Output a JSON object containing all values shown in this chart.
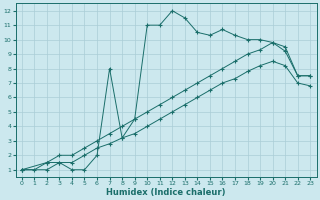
{
  "xlabel": "Humidex (Indice chaleur)",
  "bg_color": "#cce8ee",
  "grid_color": "#aacdd6",
  "line_color": "#1a6e6a",
  "xlim": [
    -0.5,
    23.5
  ],
  "ylim": [
    0.5,
    12.5
  ],
  "xticks": [
    0,
    1,
    2,
    3,
    4,
    5,
    6,
    7,
    8,
    9,
    10,
    11,
    12,
    13,
    14,
    15,
    16,
    17,
    18,
    19,
    20,
    21,
    22,
    23
  ],
  "yticks": [
    1,
    2,
    3,
    4,
    5,
    6,
    7,
    8,
    9,
    10,
    11,
    12
  ],
  "line1_x": [
    0,
    1,
    2,
    3,
    4,
    5,
    6,
    7,
    8,
    9,
    10,
    11,
    12,
    13,
    14,
    15,
    16,
    17,
    18,
    19,
    20,
    21,
    22,
    23
  ],
  "line1_y": [
    1,
    1,
    1.5,
    1.5,
    1,
    1,
    2,
    8,
    3.2,
    4.5,
    11,
    11,
    12,
    11.5,
    10.5,
    10.3,
    10.7,
    10.3,
    10,
    10,
    9.8,
    9.2,
    7.5,
    7.5
  ],
  "line2_x": [
    0,
    2,
    3,
    4,
    5,
    6,
    7,
    8,
    9,
    10,
    11,
    12,
    13,
    14,
    15,
    16,
    17,
    18,
    19,
    20,
    21,
    22,
    23
  ],
  "line2_y": [
    1,
    1.5,
    2,
    2,
    2.5,
    3,
    3.5,
    4,
    4.5,
    5,
    5.5,
    6,
    6.5,
    7,
    7.5,
    8,
    8.5,
    9,
    9.3,
    9.8,
    9.5,
    7.5,
    7.5
  ],
  "line3_x": [
    0,
    2,
    3,
    4,
    5,
    6,
    7,
    8,
    9,
    10,
    11,
    12,
    13,
    14,
    15,
    16,
    17,
    18,
    19,
    20,
    21,
    22,
    23
  ],
  "line3_y": [
    1,
    1,
    1.5,
    1.5,
    2,
    2.5,
    2.8,
    3.2,
    3.5,
    4,
    4.5,
    5,
    5.5,
    6,
    6.5,
    7,
    7.3,
    7.8,
    8.2,
    8.5,
    8.2,
    7.0,
    6.8
  ]
}
